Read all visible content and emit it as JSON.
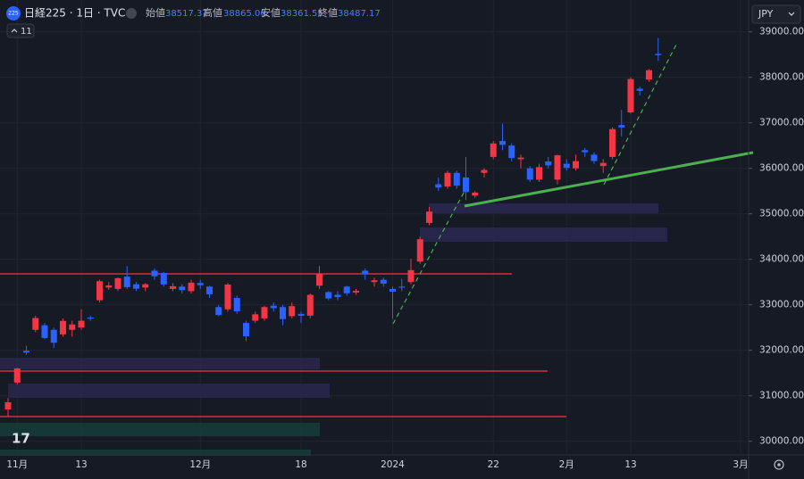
{
  "chart_data": {
    "type": "candlestick",
    "title": "日経225 · 1日 · TVC",
    "symbol_icon": "225",
    "ohlc_labels": [
      "始値",
      "高値",
      "安値",
      "終値"
    ],
    "indicator_count": "11",
    "currency": "JPY",
    "up_color": "#f23645",
    "down_color": "#2962ff",
    "grid": true,
    "categories": [
      null,
      "11月",
      null,
      null,
      null,
      null,
      null,
      null,
      "13",
      null,
      null,
      null,
      null,
      null,
      null,
      null,
      null,
      null,
      null,
      null,
      null,
      "12月",
      null,
      null,
      null,
      null,
      null,
      null,
      null,
      null,
      null,
      null,
      "18",
      null,
      null,
      null,
      null,
      null,
      null,
      null,
      null,
      null,
      "2024",
      null,
      null,
      null,
      null,
      null,
      null,
      null,
      null,
      null,
      null,
      "22",
      null,
      null,
      null,
      null,
      null,
      null,
      null,
      "2月",
      null,
      null,
      null,
      null,
      null,
      null,
      "13",
      null,
      null,
      null,
      null,
      null,
      null,
      null,
      null,
      null,
      null,
      null,
      "3月"
    ],
    "ohlc": [
      [
        30700,
        30950,
        30550,
        30858
      ],
      [
        31290,
        31610,
        31250,
        31601
      ],
      [
        31990,
        32100,
        31900,
        31950
      ],
      [
        32450,
        32760,
        32400,
        32708
      ],
      [
        32550,
        32600,
        32250,
        32271
      ],
      [
        32450,
        32500,
        32050,
        32166
      ],
      [
        32350,
        32700,
        32300,
        32646
      ],
      [
        32450,
        32650,
        32300,
        32568
      ],
      [
        32500,
        32900,
        32450,
        32650
      ],
      [
        32720,
        32760,
        32650,
        32695
      ],
      [
        33100,
        33550,
        33050,
        33519
      ],
      [
        33380,
        33500,
        33330,
        33424
      ],
      [
        33350,
        33600,
        33300,
        33585
      ],
      [
        33620,
        33850,
        33350,
        33388
      ],
      [
        33450,
        33500,
        33300,
        33354
      ],
      [
        33380,
        33480,
        33300,
        33451
      ],
      [
        33750,
        33800,
        33550,
        33625
      ],
      [
        33700,
        33720,
        33400,
        33447
      ],
      [
        33350,
        33480,
        33300,
        33408
      ],
      [
        33400,
        33450,
        33250,
        33321
      ],
      [
        33300,
        33550,
        33250,
        33486
      ],
      [
        33480,
        33550,
        33350,
        33431
      ],
      [
        33400,
        33420,
        33150,
        33231
      ],
      [
        32950,
        33000,
        32750,
        32775
      ],
      [
        32900,
        33480,
        32850,
        33445
      ],
      [
        33150,
        33200,
        32800,
        32858
      ],
      [
        32600,
        32650,
        32200,
        32307
      ],
      [
        32650,
        32850,
        32600,
        32791
      ],
      [
        32700,
        32980,
        32650,
        32950
      ],
      [
        32980,
        33050,
        32850,
        32926
      ],
      [
        32950,
        33000,
        32550,
        32686
      ],
      [
        32750,
        33050,
        32700,
        32970
      ],
      [
        32800,
        32850,
        32600,
        32758
      ],
      [
        32760,
        33250,
        32700,
        33219
      ],
      [
        33420,
        33850,
        33350,
        33675
      ],
      [
        33280,
        33300,
        33100,
        33140
      ],
      [
        33220,
        33300,
        33100,
        33169
      ],
      [
        33400,
        33420,
        33200,
        33254
      ],
      [
        33270,
        33350,
        33220,
        33305
      ],
      [
        33750,
        33800,
        33550,
        33681
      ],
      [
        33500,
        33600,
        33400,
        33539
      ],
      [
        33550,
        33600,
        33400,
        33464
      ],
      [
        33350,
        33400,
        32693,
        33288
      ],
      [
        33400,
        33570,
        33300,
        33377
      ],
      [
        33500,
        34010,
        33450,
        33763
      ],
      [
        33950,
        34500,
        33900,
        34441
      ],
      [
        34800,
        35150,
        34750,
        35049
      ],
      [
        35650,
        35800,
        35500,
        35577
      ],
      [
        35600,
        35950,
        35550,
        35901
      ],
      [
        35900,
        35950,
        35550,
        35619
      ],
      [
        35800,
        36250,
        35300,
        35477
      ],
      [
        35400,
        35500,
        35350,
        35466
      ],
      [
        35900,
        36000,
        35800,
        35963
      ],
      [
        36250,
        36600,
        36200,
        36546
      ],
      [
        36600,
        36984,
        36400,
        36517
      ],
      [
        36500,
        36550,
        36150,
        36226
      ],
      [
        36200,
        36300,
        36000,
        36236
      ],
      [
        36000,
        36050,
        35700,
        35751
      ],
      [
        35750,
        36100,
        35700,
        36026
      ],
      [
        36150,
        36250,
        36000,
        36065
      ],
      [
        35750,
        36300,
        35650,
        36286
      ],
      [
        36100,
        36200,
        35950,
        36011
      ],
      [
        36000,
        36300,
        35950,
        36158
      ],
      [
        36400,
        36450,
        36250,
        36354
      ],
      [
        36300,
        36350,
        36100,
        36160
      ],
      [
        36050,
        36200,
        35900,
        36119
      ],
      [
        36250,
        36900,
        36200,
        36863
      ],
      [
        36950,
        37287,
        36700,
        36897
      ],
      [
        37230,
        38000,
        37200,
        37963
      ],
      [
        37750,
        37800,
        37600,
        37703
      ],
      [
        37950,
        38180,
        37900,
        38157
      ],
      [
        38517.37,
        38865.06,
        38361.55,
        38487.17
      ],
      null,
      null,
      null,
      null,
      null,
      null,
      null,
      null,
      null
    ],
    "ylim": [
      29700,
      39700
    ],
    "yticks": [
      {
        "value": 30000,
        "label": "30000.00"
      },
      {
        "value": 31000,
        "label": "31000.00"
      },
      {
        "value": 32000,
        "label": "32000.00"
      },
      {
        "value": 33000,
        "label": "33000.00"
      },
      {
        "value": 34000,
        "label": "34000.00"
      },
      {
        "value": 35000,
        "label": "35000.00"
      },
      {
        "value": 36000,
        "label": "36000.00"
      },
      {
        "value": 37000,
        "label": "37000.00"
      },
      {
        "value": 38000,
        "label": "38000.00"
      },
      {
        "value": 39000,
        "label": "39000.00"
      }
    ]
  }
}
